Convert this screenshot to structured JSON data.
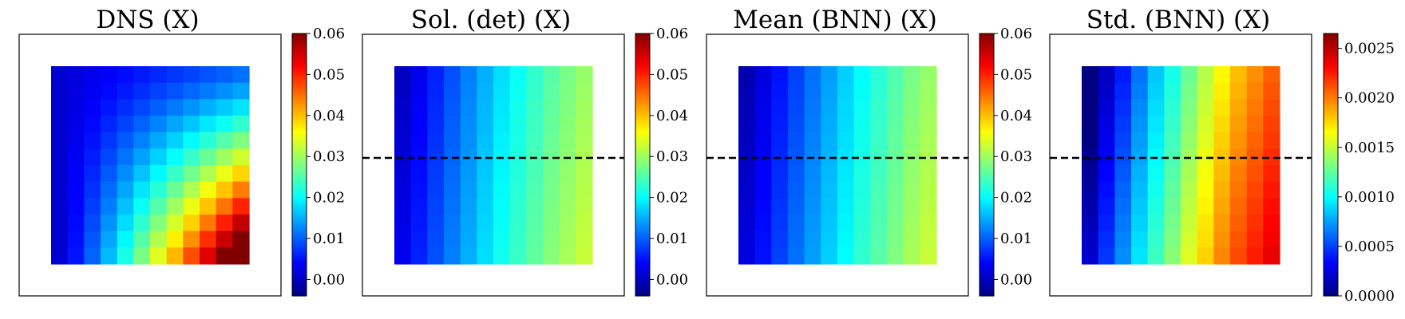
{
  "chart_data": [
    {
      "type": "heatmap",
      "title": "DNS (X)",
      "grid_size": [
        12,
        12
      ],
      "colormap": "jet",
      "vmin": -0.004,
      "vmax": 0.06,
      "colorbar_ticks": [
        "0.00",
        "0.01",
        "0.02",
        "0.03",
        "0.04",
        "0.05",
        "0.06"
      ],
      "colorbar_tick_values": [
        0.0,
        0.01,
        0.02,
        0.03,
        0.04,
        0.05,
        0.06
      ],
      "dashed_line": false,
      "value_rule": "v = 0.001 + 0.057 * (col/11)^1.2 * (row_from_top/11)^1.2 + 0.010 * col/11"
    },
    {
      "type": "heatmap",
      "title": "Sol. (det) (X)",
      "grid_size": [
        12,
        12
      ],
      "colormap": "jet",
      "vmin": -0.004,
      "vmax": 0.06,
      "colorbar_ticks": [
        "0.00",
        "0.01",
        "0.02",
        "0.03",
        "0.04",
        "0.05",
        "0.06"
      ],
      "colorbar_tick_values": [
        0.0,
        0.01,
        0.02,
        0.03,
        0.04,
        0.05,
        0.06
      ],
      "dashed_line": true,
      "column_values": [
        0.0015,
        0.0045,
        0.0075,
        0.0105,
        0.0135,
        0.0165,
        0.0195,
        0.022,
        0.0245,
        0.027,
        0.029,
        0.031
      ],
      "row_adjust": 0.003
    },
    {
      "type": "heatmap",
      "title": "Mean (BNN) (X)",
      "grid_size": [
        12,
        12
      ],
      "colormap": "jet",
      "vmin": -0.004,
      "vmax": 0.06,
      "colorbar_ticks": [
        "0.00",
        "0.01",
        "0.02",
        "0.03",
        "0.04",
        "0.05",
        "0.06"
      ],
      "colorbar_tick_values": [
        0.0,
        0.01,
        0.02,
        0.03,
        0.04,
        0.05,
        0.06
      ],
      "dashed_line": true,
      "column_values": [
        0.0005,
        0.0035,
        0.0065,
        0.0095,
        0.0125,
        0.0155,
        0.0185,
        0.0215,
        0.024,
        0.0265,
        0.029,
        0.031
      ],
      "row_adjust": 0.003
    },
    {
      "type": "heatmap",
      "title": "Std. (BNN) (X)",
      "grid_size": [
        12,
        12
      ],
      "colormap": "jet",
      "vmin": 0.0,
      "vmax": 0.00265,
      "colorbar_ticks": [
        "0.0000",
        "0.0005",
        "0.0010",
        "0.0015",
        "0.0020",
        "0.0025"
      ],
      "colorbar_tick_values": [
        0.0,
        0.0005,
        0.001,
        0.0015,
        0.002,
        0.0025
      ],
      "dashed_line": true,
      "column_values": [
        5e-05,
        0.00032,
        0.00055,
        0.00078,
        0.001,
        0.0012,
        0.00142,
        0.00162,
        0.00182,
        0.00198,
        0.0021,
        0.00222
      ],
      "row_adjust": 0.0003
    }
  ]
}
